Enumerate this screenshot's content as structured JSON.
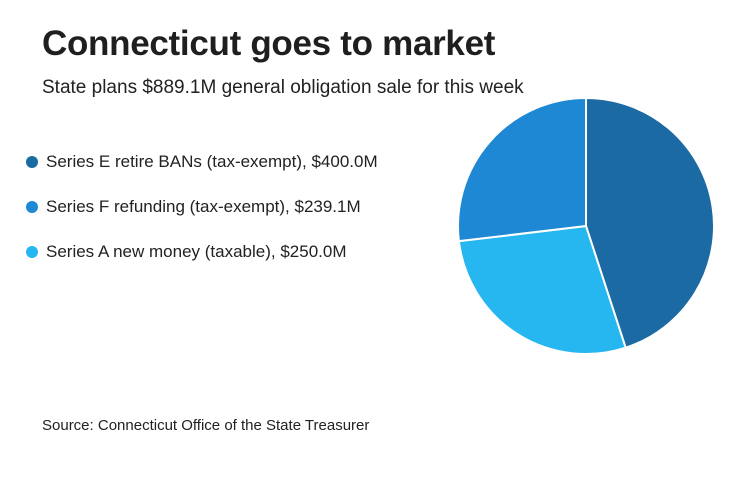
{
  "title": "Connecticut goes to market",
  "subtitle": "State plans $889.1M general obligation sale for this week",
  "source": "Source: Connecticut Office of the State Treasurer",
  "chart_data": {
    "type": "pie",
    "legend_position": "left",
    "slices": [
      {
        "label": "Series E retire BANs (tax-exempt), $400.0M",
        "value": 400.0,
        "color": "#1b6aa3"
      },
      {
        "label": "Series A new money (taxable), $250.0M",
        "value": 250.0,
        "color": "#26b6f0"
      },
      {
        "label": "Series F refunding (tax-exempt), $239.1M",
        "value": 239.1,
        "color": "#1f88d4"
      }
    ],
    "legend": [
      {
        "label": "Series E retire BANs (tax-exempt), $400.0M",
        "color": "#1b6aa3"
      },
      {
        "label": "Series F refunding (tax-exempt), $239.1M",
        "color": "#1f88d4"
      },
      {
        "label": "Series A new money (taxable), $250.0M",
        "color": "#26b6f0"
      }
    ]
  }
}
